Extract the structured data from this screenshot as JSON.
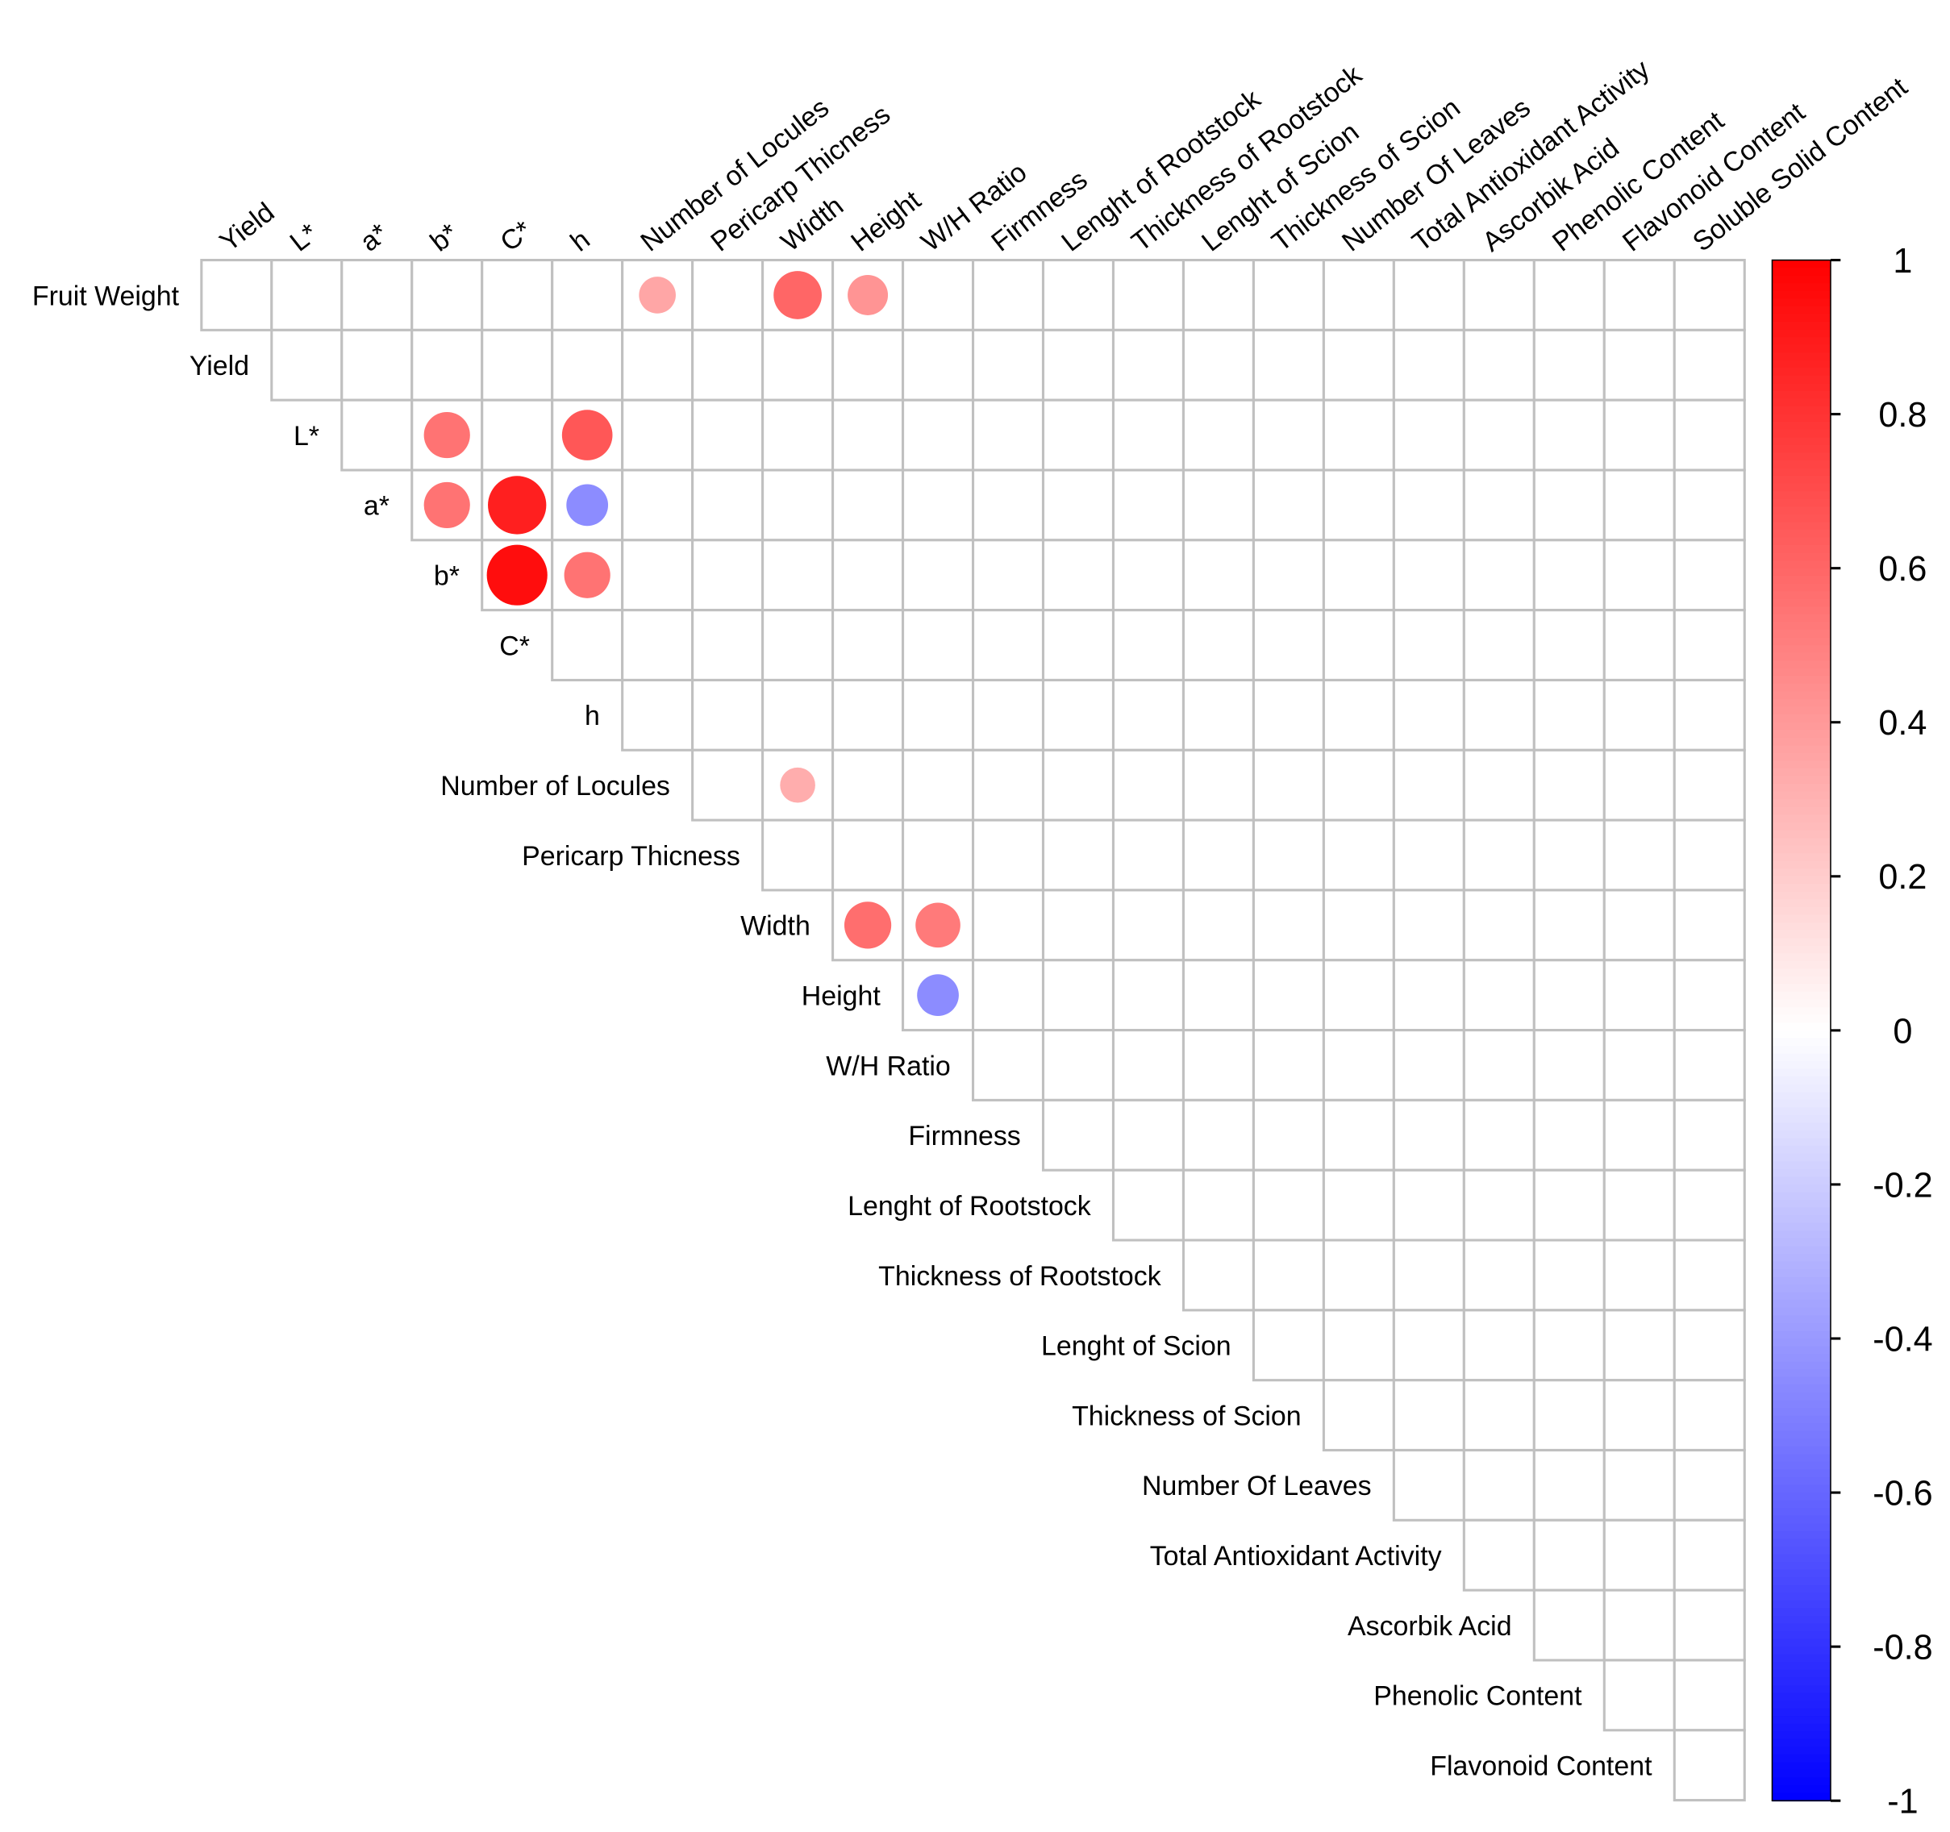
{
  "chart_data": {
    "type": "heatmap",
    "style": "corrplot upper triangle, circles (size and color show r), non-significant cells left empty",
    "variables": [
      "Fruit Weight",
      "Yield",
      "L*",
      "a*",
      "b*",
      "C*",
      "h",
      "Number of Locules",
      "Pericarp Thicness",
      "Width",
      "Height",
      "W/H Ratio",
      "Firmness",
      "Lenght of Rootstock",
      "Thickness of Rootstock",
      "Lenght of Scion",
      "Thickness of Scion",
      "Number Of Leaves",
      "Total Antioxidant Activity",
      "Ascorbik Acid",
      "Phenolic Content",
      "Flavonoid Content",
      "Soluble Solid Content"
    ],
    "correlations": [
      {
        "row": "Fruit Weight",
        "col": "Number of Locules",
        "r": 0.35
      },
      {
        "row": "Fruit Weight",
        "col": "Width",
        "r": 0.6
      },
      {
        "row": "Fruit Weight",
        "col": "Height",
        "r": 0.42
      },
      {
        "row": "L*",
        "col": "b*",
        "r": 0.55
      },
      {
        "row": "L*",
        "col": "h",
        "r": 0.66
      },
      {
        "row": "a*",
        "col": "b*",
        "r": 0.55
      },
      {
        "row": "a*",
        "col": "C*",
        "r": 0.88
      },
      {
        "row": "a*",
        "col": "h",
        "r": -0.45
      },
      {
        "row": "b*",
        "col": "C*",
        "r": 0.95
      },
      {
        "row": "b*",
        "col": "h",
        "r": 0.55
      },
      {
        "row": "Number of Locules",
        "col": "Width",
        "r": 0.32
      },
      {
        "row": "Width",
        "col": "Height",
        "r": 0.57
      },
      {
        "row": "Width",
        "col": "W/H Ratio",
        "r": 0.52
      },
      {
        "row": "Height",
        "col": "W/H Ratio",
        "r": -0.45
      }
    ],
    "colorbar": {
      "range": [
        -1,
        1
      ],
      "ticks": [
        "1",
        "0.8",
        "0.6",
        "0.4",
        "0.2",
        "0",
        "-0.2",
        "-0.4",
        "-0.6",
        "-0.8",
        "-1"
      ],
      "colors": {
        "neg": "#0000FF",
        "zero": "#FFFFFF",
        "pos": "#FF0000"
      },
      "placement": "right"
    },
    "grid_color": "#C0C0C0"
  }
}
